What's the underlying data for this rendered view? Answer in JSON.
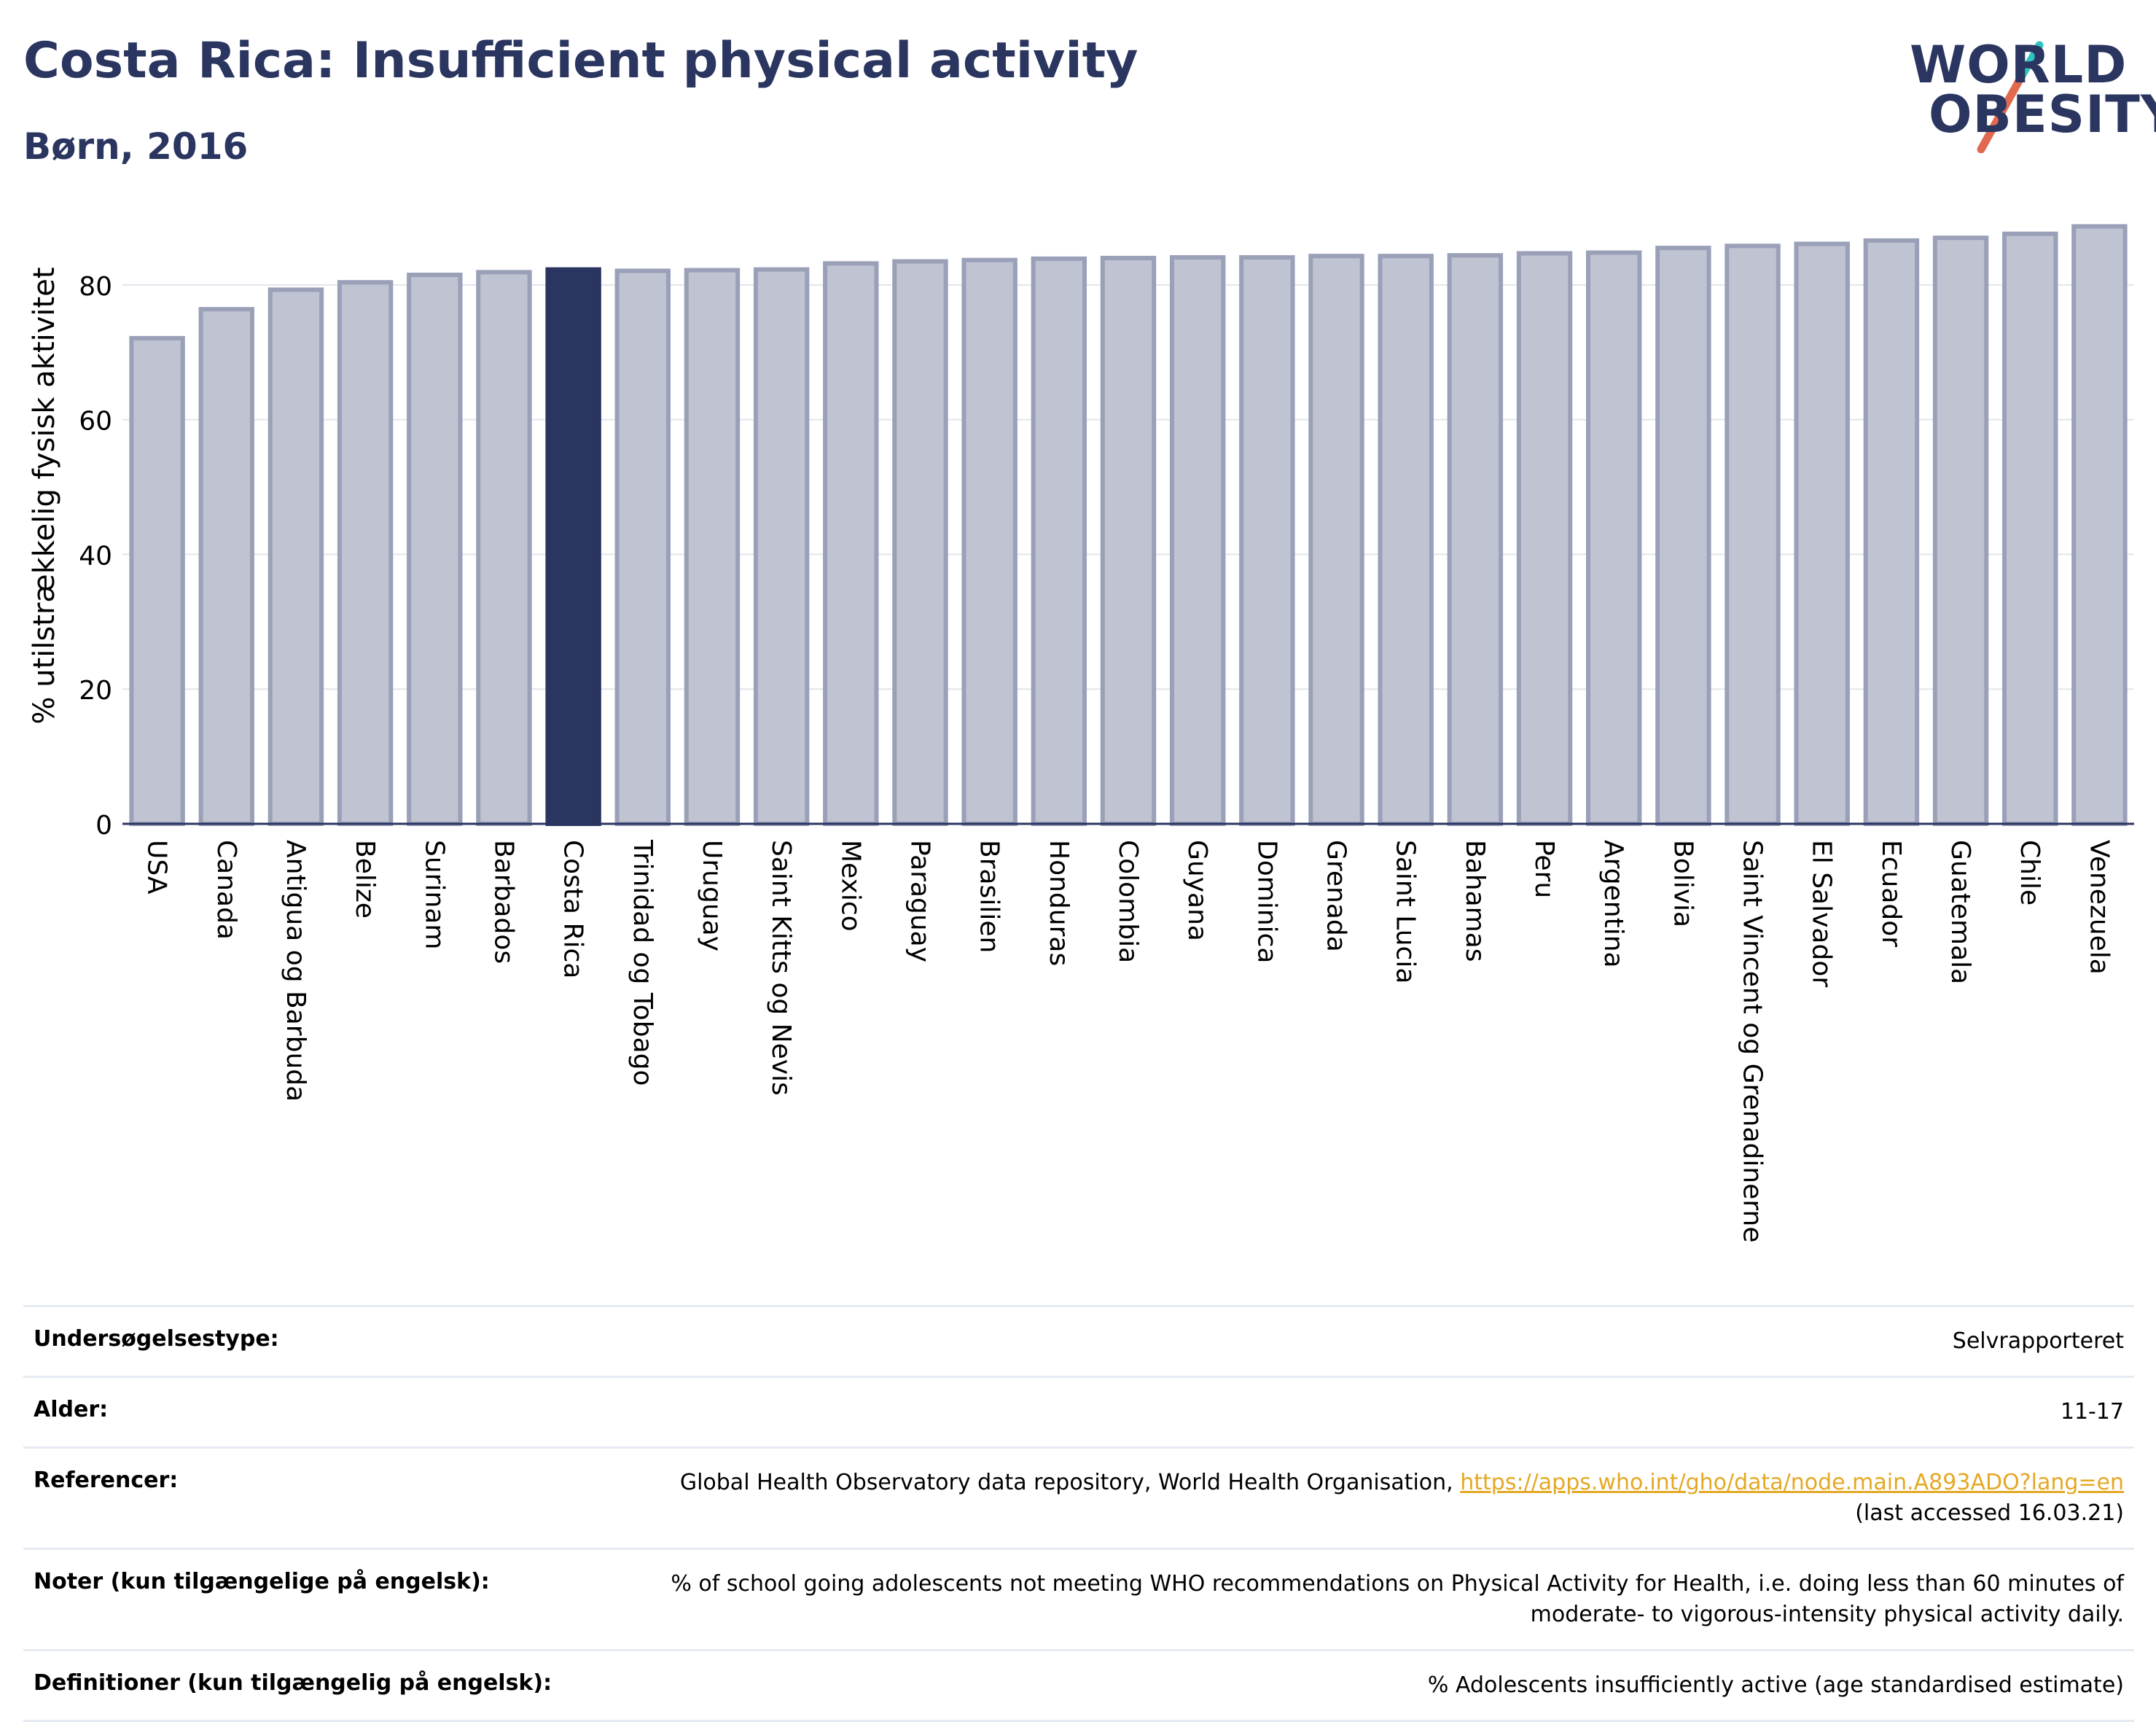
{
  "header": {
    "title": "Costa Rica: Insufficient physical activity",
    "subtitle": "Børn, 2016"
  },
  "logo": {
    "line1": "WORLD",
    "line2": "OBESITY"
  },
  "colors": {
    "bar": "#bfc3d2",
    "bar_edge": "#9aa0b8",
    "highlight": "#2a3560",
    "grid": "#e3e5ec",
    "axis": "#2a3560"
  },
  "chart_data": {
    "type": "bar",
    "ylabel": "% utilstrækkelig fysisk aktivitet",
    "ylim": [
      0,
      92
    ],
    "yticks": [
      0,
      20,
      40,
      60,
      80
    ],
    "grid": true,
    "highlight": "Costa Rica",
    "categories": [
      "USA",
      "Canada",
      "Antigua og Barbuda",
      "Belize",
      "Surinam",
      "Barbados",
      "Costa Rica",
      "Trinidad og Tobago",
      "Uruguay",
      "Saint Kitts og Nevis",
      "Mexico",
      "Paraguay",
      "Brasilien",
      "Honduras",
      "Colombia",
      "Guyana",
      "Dominica",
      "Grenada",
      "Saint Lucia",
      "Bahamas",
      "Peru",
      "Argentina",
      "Bolivia",
      "Saint Vincent og Grenadinerne",
      "El Salvador",
      "Ecuador",
      "Guatemala",
      "Chile",
      "Venezuela"
    ],
    "values": [
      72.1,
      76.4,
      79.3,
      80.4,
      81.5,
      81.9,
      82.3,
      82.1,
      82.2,
      82.3,
      83.2,
      83.5,
      83.7,
      83.9,
      84.0,
      84.1,
      84.1,
      84.3,
      84.3,
      84.4,
      84.7,
      84.8,
      85.5,
      85.8,
      86.1,
      86.6,
      87.0,
      87.6,
      88.7
    ]
  },
  "meta": [
    {
      "label": "Undersøgelsestype:",
      "value": "Selvrapporteret"
    },
    {
      "label": "Alder:",
      "value": "11-17"
    },
    {
      "label": "Referencer:",
      "value": "Global Health Observatory data repository, World Health Organisation,",
      "link": "https://apps.who.int/gho/data/node.main.A893ADO?lang=en",
      "extra": "(last accessed 16.03.21)"
    },
    {
      "label": "Noter (kun tilgængelige på engelsk):",
      "value": "% of school going adolescents not meeting WHO recommendations on Physical Activity for Health, i.e. doing less than 60 minutes of moderate- to vigorous-intensity physical activity daily."
    },
    {
      "label": "Definitioner (kun tilgængelig på engelsk):",
      "value": "% Adolescents insufficiently active (age standardised estimate)"
    }
  ]
}
